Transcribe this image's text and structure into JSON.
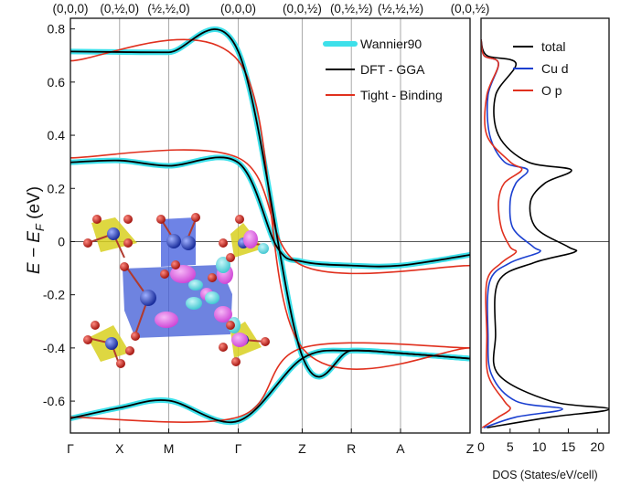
{
  "chart_data": [
    {
      "type": "line",
      "panel": "band-structure",
      "ylabel_main": "E − E",
      "ylabel_sub": "F",
      "ylabel_unit": " (eV)",
      "ylim": [
        -0.72,
        0.84
      ],
      "yticks": [
        -0.6,
        -0.4,
        -0.2,
        0,
        0.2,
        0.4,
        0.6,
        0.8
      ],
      "ytick_labels": [
        "-0.6",
        "-0.4",
        "-0.2",
        "0",
        "0.2",
        "0.4",
        "0.6",
        "0.8"
      ],
      "kpath": [
        {
          "label": "Γ",
          "coord": "(0,0,0)",
          "pos": 0
        },
        {
          "label": "X",
          "coord": "(0,½,0)",
          "pos": 1
        },
        {
          "label": "M",
          "coord": "(½,½,0)",
          "pos": 2
        },
        {
          "label": "Γ",
          "coord": "(0,0,0)",
          "pos": 3.414
        },
        {
          "label": "Z",
          "coord": "(0,0,½)",
          "pos": 4.714
        },
        {
          "label": "R",
          "coord": "(0,½,½)",
          "pos": 5.714
        },
        {
          "label": "A",
          "coord": "(½,½,½)",
          "pos": 6.714
        },
        {
          "label": "Z",
          "coord": "(0,0,½)",
          "pos": 8.128
        }
      ],
      "grid": true,
      "fermi_line": 0,
      "legend_position": "top-right",
      "series": [
        {
          "name": "Wannier90",
          "color": "#3de0ea",
          "bands": [
            {
              "x": [
                0,
                1,
                2,
                3.414,
                4.714,
                5.714,
                6.714,
                8.128
              ],
              "y": [
                0.715,
                0.713,
                0.712,
                0.715,
                -0.43,
                -0.41,
                -0.42,
                -0.44
              ]
            },
            {
              "x": [
                0,
                1,
                2,
                3.414,
                4.2,
                4.714,
                5.714,
                6.714,
                8.128
              ],
              "y": [
                0.298,
                0.305,
                0.285,
                0.297,
                -0.02,
                -0.075,
                -0.09,
                -0.09,
                -0.05
              ]
            },
            {
              "x": [
                0,
                1,
                2,
                3.414,
                4.714,
                5.714,
                6.714,
                8.128
              ],
              "y": [
                -0.665,
                -0.625,
                -0.598,
                -0.675,
                -0.44,
                -0.41,
                -0.42,
                -0.44
              ]
            }
          ]
        },
        {
          "name": "DFT - GGA",
          "color": "#000000",
          "bands": [
            {
              "x": [
                0,
                1,
                2,
                3.414,
                4.714,
                5.714,
                6.714,
                8.128
              ],
              "y": [
                0.715,
                0.713,
                0.712,
                0.715,
                -0.43,
                -0.41,
                -0.42,
                -0.44
              ]
            },
            {
              "x": [
                0,
                1,
                2,
                3.414,
                4.2,
                4.714,
                5.714,
                6.714,
                8.128
              ],
              "y": [
                0.298,
                0.305,
                0.285,
                0.297,
                -0.02,
                -0.075,
                -0.09,
                -0.09,
                -0.05
              ]
            },
            {
              "x": [
                0,
                1,
                2,
                3.414,
                4.714,
                5.714,
                6.714,
                8.128
              ],
              "y": [
                -0.665,
                -0.625,
                -0.598,
                -0.675,
                -0.44,
                -0.41,
                -0.42,
                -0.44
              ]
            }
          ]
        },
        {
          "name": "Tight - Binding",
          "color": "#e0301e",
          "bands": [
            {
              "x": [
                0,
                3.414,
                4.714,
                8.128
              ],
              "y": [
                0.68,
                0.68,
                -0.4,
                -0.4
              ]
            },
            {
              "x": [
                0,
                3.414,
                4.714,
                8.128
              ],
              "y": [
                0.315,
                0.315,
                -0.09,
                -0.09
              ]
            },
            {
              "x": [
                0,
                3.414,
                4.714,
                8.128
              ],
              "y": [
                -0.66,
                -0.66,
                -0.4,
                -0.4
              ]
            }
          ]
        }
      ]
    },
    {
      "type": "line",
      "panel": "dos",
      "xlabel": "DOS (States/eV/cell)",
      "xlim": [
        0,
        22
      ],
      "xticks": [
        0,
        5,
        10,
        15,
        20
      ],
      "ylim": [
        -0.72,
        0.84
      ],
      "legend_position": "top-right",
      "series": [
        {
          "name": "total",
          "color": "#000000",
          "energy": [
            0.76,
            0.7,
            0.67,
            0.55,
            0.4,
            0.3,
            0.27,
            0.22,
            0.15,
            0.05,
            -0.02,
            -0.04,
            -0.08,
            -0.15,
            -0.35,
            -0.5,
            -0.6,
            -0.63,
            -0.66,
            -0.7
          ],
          "dos": [
            0,
            1,
            6,
            2.5,
            3,
            8,
            15.5,
            11,
            8.5,
            9.5,
            15,
            16,
            9,
            3,
            2.5,
            3,
            12,
            22,
            12,
            1
          ]
        },
        {
          "name": "Cu d",
          "color": "#1a3fd0",
          "energy": [
            0.76,
            0.7,
            0.67,
            0.55,
            0.4,
            0.3,
            0.27,
            0.22,
            0.15,
            0.05,
            -0.02,
            -0.04,
            -0.08,
            -0.15,
            -0.35,
            -0.5,
            -0.6,
            -0.63,
            -0.66,
            -0.7
          ],
          "dos": [
            0,
            0.5,
            3,
            1.2,
            1.5,
            4,
            8,
            6,
            5,
            5.5,
            9,
            10,
            5,
            1.5,
            1.2,
            1.8,
            6,
            14,
            6,
            0.5
          ]
        },
        {
          "name": "O p",
          "color": "#e0301e",
          "energy": [
            0.76,
            0.7,
            0.67,
            0.55,
            0.4,
            0.3,
            0.27,
            0.22,
            0.15,
            0.05,
            -0.02,
            -0.04,
            -0.08,
            -0.15,
            -0.35,
            -0.5,
            -0.6,
            -0.63,
            -0.66,
            -0.7
          ],
          "dos": [
            0,
            0.5,
            3,
            1,
            1,
            5,
            7,
            4,
            3,
            3.5,
            5,
            6,
            3.5,
            1,
            1,
            1.2,
            4,
            5,
            3,
            0.2
          ]
        }
      ]
    }
  ],
  "inset": {
    "name": "crystal-structure-orbital-inset",
    "colors": {
      "octahedron": "#3d59d6",
      "tetrahedron": "#d8d020",
      "oxygen": "#d0201a",
      "lobe_magenta": "#e35ee8",
      "lobe_cyan": "#5ad8e0",
      "copper": "#2c46c8"
    }
  }
}
